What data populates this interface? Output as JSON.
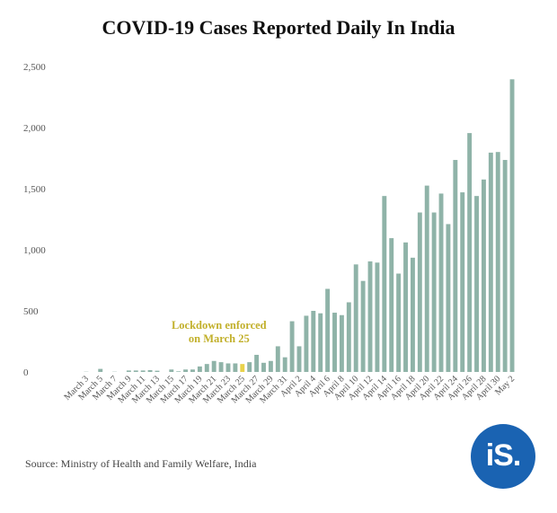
{
  "chart_data": {
    "type": "bar",
    "title": "COVID-19 Cases Reported Daily In India",
    "source": "Source: Ministry of Health and Family Welfare, India",
    "ylim": [
      0,
      2500
    ],
    "yticks": [
      0,
      500,
      1000,
      1500,
      2000,
      2500
    ],
    "ytick_labels": [
      "0",
      "500",
      "1,000",
      "1,500",
      "2,000",
      "2,500"
    ],
    "grid": false,
    "colors": {
      "bar": "#8fb3a8",
      "highlight": "#e8d24a",
      "annotation": "#c2b02b"
    },
    "highlight_category": "March 25",
    "annotation": {
      "lines": [
        "Lockdown enforced",
        "on March 25"
      ]
    },
    "categories": [
      "March 3",
      "March 4",
      "March 5",
      "March 6",
      "March 7",
      "March 8",
      "March 9",
      "March 10",
      "March 11",
      "March 12",
      "March 13",
      "March 14",
      "March 15",
      "March 16",
      "March 17",
      "March 18",
      "March 19",
      "March 20",
      "March 21",
      "March 22",
      "March 23",
      "March 24",
      "March 25",
      "March 26",
      "March 27",
      "March 28",
      "March 29",
      "March 30",
      "March 31",
      "April 1",
      "April 2",
      "April 3",
      "April 4",
      "April 5",
      "April 6",
      "April 7",
      "April 8",
      "April 9",
      "April 10",
      "April 11",
      "April 12",
      "April 13",
      "April 14",
      "April 15",
      "April 16",
      "April 17",
      "April 18",
      "April 19",
      "April 20",
      "April 21",
      "April 22",
      "April 23",
      "April 24",
      "April 25",
      "April 26",
      "April 27",
      "April 28",
      "April 29",
      "April 30",
      "May 1",
      "May 2"
    ],
    "category_labels": [
      "March 3",
      "",
      "March 5",
      "",
      "March 7",
      "",
      "March 9",
      "",
      "March 11",
      "",
      "March 13",
      "",
      "March 15",
      "",
      "March 17",
      "",
      "March 19",
      "",
      "March 21",
      "",
      "March 23",
      "",
      "March 25",
      "",
      "March 27",
      "",
      "March 29",
      "",
      "March 31",
      "",
      "April 2",
      "",
      "April 4",
      "",
      "April 6",
      "",
      "April 8",
      "",
      "April 10",
      "",
      "April 12",
      "",
      "April 14",
      "",
      "April 16",
      "",
      "April 18",
      "",
      "April 20",
      "",
      "April 22",
      "",
      "April 24",
      "",
      "April 26",
      "",
      "April 28",
      "",
      "April 30",
      "",
      "May 2"
    ],
    "values": [
      2,
      0,
      25,
      0,
      2,
      0,
      12,
      12,
      12,
      15,
      10,
      0,
      20,
      5,
      20,
      20,
      45,
      65,
      90,
      80,
      70,
      70,
      65,
      80,
      140,
      75,
      90,
      210,
      120,
      415,
      210,
      460,
      500,
      480,
      680,
      485,
      465,
      570,
      880,
      745,
      905,
      895,
      1440,
      1095,
      805,
      1060,
      935,
      1305,
      1525,
      1305,
      1460,
      1210,
      1735,
      1470,
      1955,
      1440,
      1575,
      1795,
      1800,
      1735,
      2395
    ]
  }
}
